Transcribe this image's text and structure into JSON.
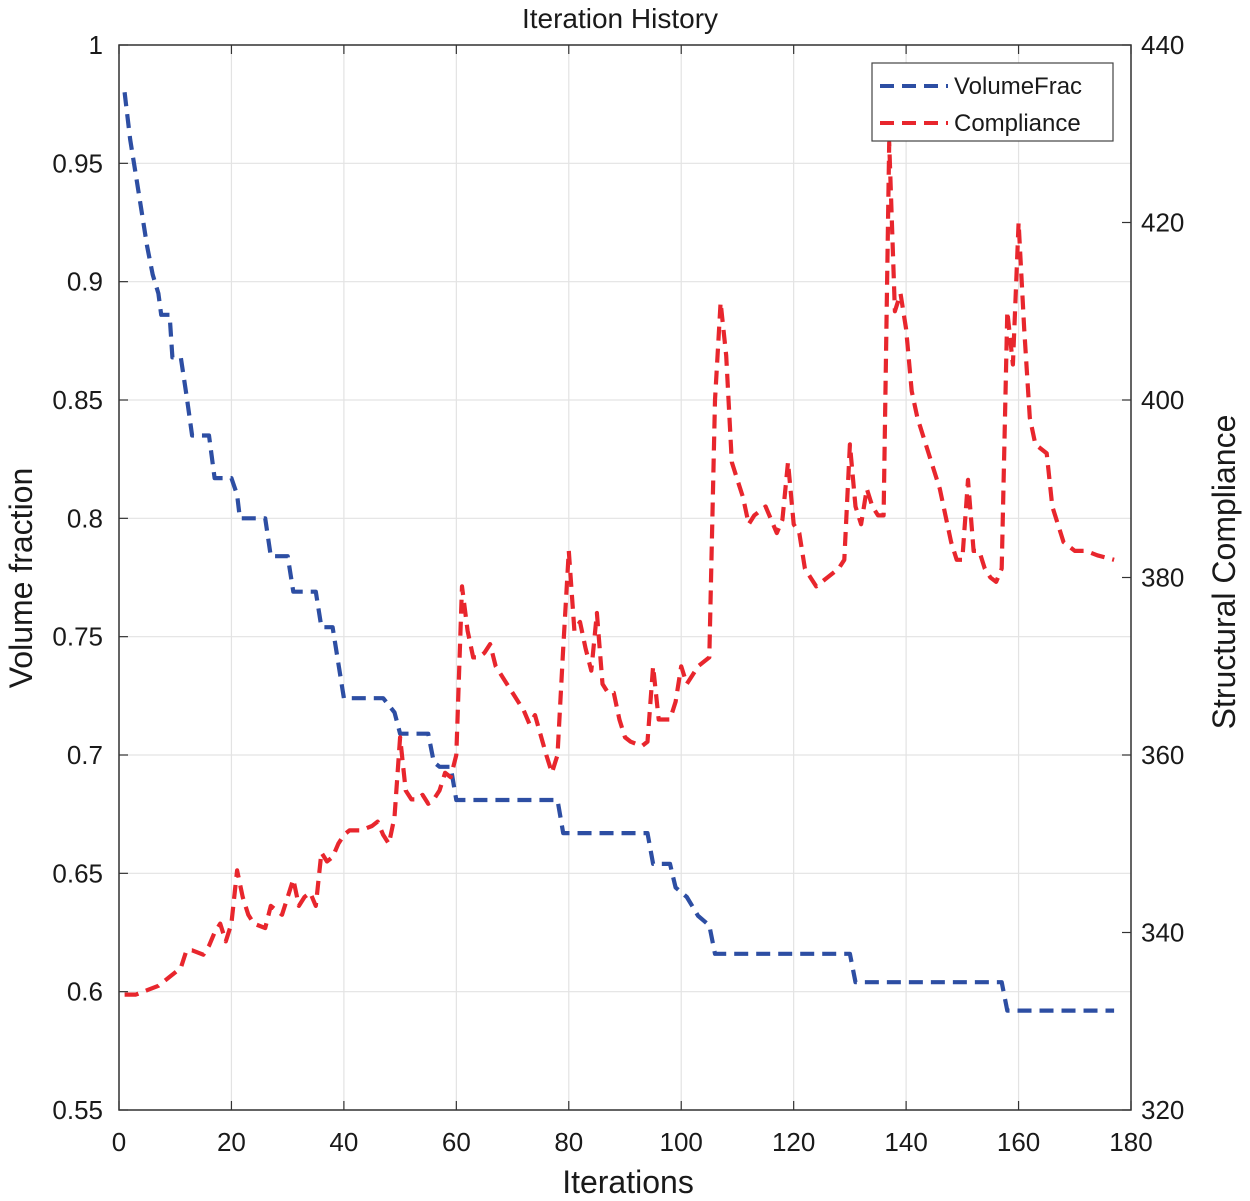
{
  "chart_data": {
    "type": "line",
    "title": "Iteration History",
    "xlabel": "Iterations",
    "ylabel_left": "Volume fraction",
    "ylabel_right": "Structural Compliance",
    "xlim": [
      0,
      180
    ],
    "ylim_left": [
      0.55,
      1
    ],
    "ylim_right": [
      320,
      440
    ],
    "xticks": [
      "0",
      "20",
      "40",
      "60",
      "80",
      "100",
      "120",
      "140",
      "160",
      "180"
    ],
    "yticks_left": [
      "0.55",
      "0.6",
      "0.65",
      "0.7",
      "0.75",
      "0.8",
      "0.85",
      "0.9",
      "0.95",
      "1"
    ],
    "yticks_right": [
      "320",
      "340",
      "360",
      "380",
      "400",
      "420",
      "440"
    ],
    "grid": true,
    "legend_position": "top-right",
    "series": [
      {
        "name": "VolumeFrac",
        "axis": "left",
        "color": "#2d4ea3",
        "line_style": "dashed",
        "points": [
          [
            1,
            0.98
          ],
          [
            2,
            0.96
          ],
          [
            3,
            0.945
          ],
          [
            4,
            0.93
          ],
          [
            5,
            0.915
          ],
          [
            6,
            0.903
          ],
          [
            7,
            0.895
          ],
          [
            7.5,
            0.886
          ],
          [
            9,
            0.886
          ],
          [
            9.5,
            0.868
          ],
          [
            11,
            0.868
          ],
          [
            12,
            0.852
          ],
          [
            13,
            0.835
          ],
          [
            15,
            0.835
          ],
          [
            16,
            0.835
          ],
          [
            17,
            0.817
          ],
          [
            20,
            0.817
          ],
          [
            21,
            0.81
          ],
          [
            21.5,
            0.8
          ],
          [
            26,
            0.8
          ],
          [
            27,
            0.784
          ],
          [
            30,
            0.784
          ],
          [
            31,
            0.769
          ],
          [
            35,
            0.769
          ],
          [
            36,
            0.754
          ],
          [
            38,
            0.754
          ],
          [
            40,
            0.724
          ],
          [
            47,
            0.724
          ],
          [
            49,
            0.718
          ],
          [
            50,
            0.709
          ],
          [
            55,
            0.709
          ],
          [
            56,
            0.697
          ],
          [
            57,
            0.695
          ],
          [
            59,
            0.695
          ],
          [
            60,
            0.681
          ],
          [
            78,
            0.681
          ],
          [
            79,
            0.667
          ],
          [
            94,
            0.667
          ],
          [
            95,
            0.654
          ],
          [
            98,
            0.654
          ],
          [
            99,
            0.644
          ],
          [
            101,
            0.64
          ],
          [
            103,
            0.632
          ],
          [
            105,
            0.628
          ],
          [
            106,
            0.616
          ],
          [
            130,
            0.616
          ],
          [
            131,
            0.604
          ],
          [
            157,
            0.604
          ],
          [
            158,
            0.592
          ],
          [
            177,
            0.592
          ]
        ]
      },
      {
        "name": "Compliance",
        "axis": "right",
        "color": "#e8262d",
        "line_style": "dashed",
        "points": [
          [
            1,
            333
          ],
          [
            3,
            333
          ],
          [
            5,
            333.5
          ],
          [
            7,
            334
          ],
          [
            9,
            335
          ],
          [
            11,
            336
          ],
          [
            12,
            338
          ],
          [
            13,
            338
          ],
          [
            15,
            337.5
          ],
          [
            16,
            338.5
          ],
          [
            17,
            340
          ],
          [
            18,
            341
          ],
          [
            19,
            339
          ],
          [
            20,
            341
          ],
          [
            21,
            347
          ],
          [
            22,
            344
          ],
          [
            23,
            342
          ],
          [
            24,
            341
          ],
          [
            26,
            340.5
          ],
          [
            27,
            343
          ],
          [
            28,
            342.5
          ],
          [
            29,
            342
          ],
          [
            30,
            344
          ],
          [
            31,
            346
          ],
          [
            32,
            343
          ],
          [
            33,
            344
          ],
          [
            34,
            344.5
          ],
          [
            35,
            343
          ],
          [
            36,
            349
          ],
          [
            37,
            348
          ],
          [
            38,
            348.5
          ],
          [
            39,
            350
          ],
          [
            40,
            351
          ],
          [
            41,
            351.5
          ],
          [
            43,
            351.5
          ],
          [
            45,
            352
          ],
          [
            46,
            352.5
          ],
          [
            47,
            351
          ],
          [
            48,
            350
          ],
          [
            49,
            353
          ],
          [
            50,
            362
          ],
          [
            51,
            356
          ],
          [
            52,
            355
          ],
          [
            53,
            355
          ],
          [
            54,
            355.5
          ],
          [
            55,
            354.5
          ],
          [
            56,
            355
          ],
          [
            57,
            356
          ],
          [
            58,
            358
          ],
          [
            59,
            357.5
          ],
          [
            60,
            360
          ],
          [
            61,
            379
          ],
          [
            62,
            374
          ],
          [
            63,
            371
          ],
          [
            64,
            371
          ],
          [
            65,
            371.5
          ],
          [
            66,
            372.5
          ],
          [
            67,
            370
          ],
          [
            70,
            367
          ],
          [
            72,
            365
          ],
          [
            73,
            363.5
          ],
          [
            74,
            364.5
          ],
          [
            76,
            360
          ],
          [
            77,
            358
          ],
          [
            78,
            360
          ],
          [
            79,
            372
          ],
          [
            80,
            383
          ],
          [
            81,
            374
          ],
          [
            82,
            375
          ],
          [
            83,
            372
          ],
          [
            84,
            369.5
          ],
          [
            85,
            376
          ],
          [
            86,
            368
          ],
          [
            87,
            367
          ],
          [
            88,
            367
          ],
          [
            89,
            364
          ],
          [
            90,
            362
          ],
          [
            91,
            361.5
          ],
          [
            93,
            361
          ],
          [
            94,
            361.5
          ],
          [
            95,
            370
          ],
          [
            96,
            364
          ],
          [
            97,
            364
          ],
          [
            98,
            364
          ],
          [
            99,
            366
          ],
          [
            100,
            370
          ],
          [
            101,
            368
          ],
          [
            102,
            369
          ],
          [
            103,
            370
          ],
          [
            105,
            371
          ],
          [
            106,
            400
          ],
          [
            107,
            411
          ],
          [
            108,
            405
          ],
          [
            109,
            393
          ],
          [
            110,
            391
          ],
          [
            111,
            389
          ],
          [
            112,
            386
          ],
          [
            113,
            387
          ],
          [
            115,
            388
          ],
          [
            117,
            385
          ],
          [
            118,
            386.5
          ],
          [
            119,
            393
          ],
          [
            120,
            386
          ],
          [
            121,
            385
          ],
          [
            122,
            381
          ],
          [
            123,
            380
          ],
          [
            124,
            379
          ],
          [
            126,
            380
          ],
          [
            128,
            381
          ],
          [
            129,
            382
          ],
          [
            130,
            395
          ],
          [
            131,
            388
          ],
          [
            132,
            386
          ],
          [
            133,
            390
          ],
          [
            134,
            388
          ],
          [
            135,
            387
          ],
          [
            136,
            387
          ],
          [
            137,
            429
          ],
          [
            138,
            410
          ],
          [
            139,
            412
          ],
          [
            140,
            408
          ],
          [
            141,
            401
          ],
          [
            142,
            398
          ],
          [
            144,
            394
          ],
          [
            146,
            390
          ],
          [
            148,
            384
          ],
          [
            149,
            382
          ],
          [
            150,
            382
          ],
          [
            151,
            391
          ],
          [
            152,
            383
          ],
          [
            153,
            383
          ],
          [
            154,
            381
          ],
          [
            155,
            380
          ],
          [
            156,
            379.5
          ],
          [
            157,
            381
          ],
          [
            158,
            410
          ],
          [
            159,
            404
          ],
          [
            160,
            420
          ],
          [
            161,
            408
          ],
          [
            162,
            398
          ],
          [
            163,
            395
          ],
          [
            165,
            394
          ],
          [
            166,
            388
          ],
          [
            168,
            384
          ],
          [
            170,
            383
          ],
          [
            172,
            383
          ],
          [
            174,
            382.5
          ],
          [
            177,
            382
          ]
        ]
      }
    ]
  }
}
